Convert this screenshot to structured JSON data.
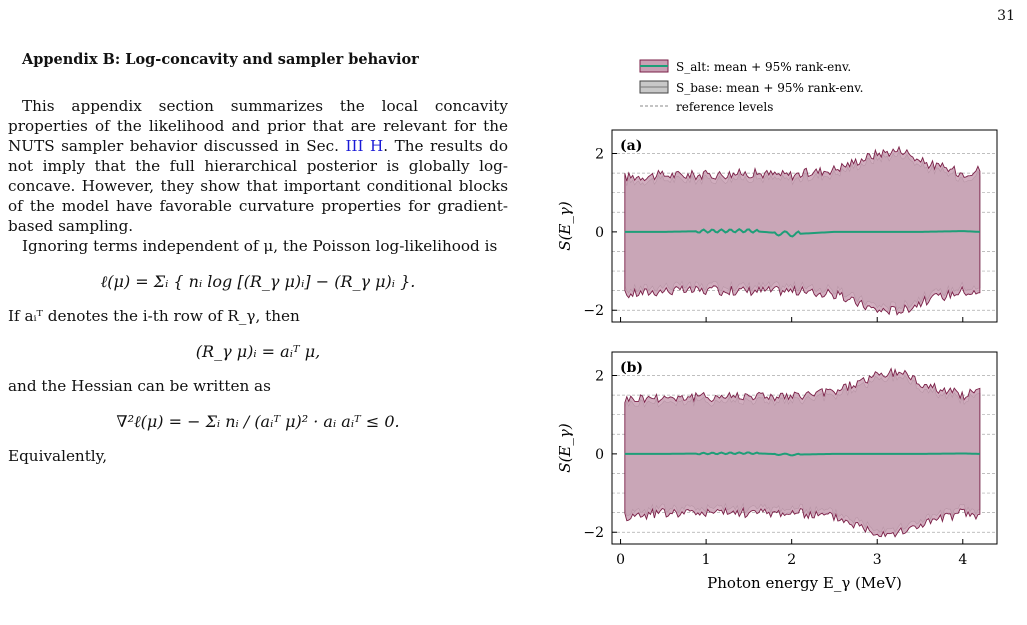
{
  "page_number": "31",
  "section_title": "Appendix B: Log-concavity and sampler behavior",
  "para1_a": "This appendix section summarizes the local concavity properties of the likelihood and prior that are relevant for the NUTS sampler behavior discussed in Sec. ",
  "para1_link": "III H",
  "para1_b": ". The results do not imply that the full hierarchical posterior is globally log-concave. However, they show that important conditional blocks of the model have favorable curvature properties for gradient-based sampling.",
  "para2": "Ignoring terms independent of μ, the Poisson log-likelihood is",
  "eq1": "ℓ(μ) = Σᵢ { nᵢ log [(R_γ μ)ᵢ] − (R_γ μ)ᵢ }.",
  "para3": "If aᵢᵀ denotes the i-th row of R_γ, then",
  "eq2": "(R_γ μ)ᵢ = aᵢᵀ μ,",
  "para4": "and the Hessian can be written as",
  "eq3": "∇²ℓ(μ) = − Σᵢ nᵢ / (aᵢᵀ μ)² · aᵢ aᵢᵀ ≤ 0.",
  "para5": "Equivalently,",
  "legend": [
    "S_alt: mean + 95% rank-env.",
    "S_base: mean + 95% rank-env.",
    "reference levels"
  ],
  "colors": {
    "alt_fill": "#c9a0b4",
    "alt_line": "#7a1f47",
    "base_fill": "#c8c8c8",
    "mean": "#1e9e78",
    "ref": "#aaaaaa",
    "link": "#1a1ad6"
  },
  "chart_data": [
    {
      "type": "area",
      "panel_label": "(a)",
      "ylabel": "S(E_γ)",
      "xlim": [
        -0.1,
        4.4
      ],
      "ylim": [
        -2.3,
        2.6
      ],
      "yticks": [
        -2,
        0,
        2
      ],
      "reference_levels": [
        -2,
        -1.5,
        -1,
        -0.5,
        0.5,
        1,
        1.5,
        2
      ],
      "x": [
        0.05,
        0.5,
        1.0,
        1.5,
        2.0,
        2.5,
        3.0,
        3.3,
        3.5,
        4.0,
        4.2
      ],
      "upper": [
        1.4,
        1.45,
        1.45,
        1.5,
        1.45,
        1.6,
        2.0,
        2.1,
        1.8,
        1.5,
        1.6
      ],
      "lower": [
        -1.6,
        -1.5,
        -1.5,
        -1.5,
        -1.5,
        -1.6,
        -2.0,
        -2.0,
        -1.8,
        -1.5,
        -1.6
      ],
      "mean": [
        0,
        0,
        0.02,
        0.03,
        -0.06,
        0,
        0,
        0,
        0,
        0.02,
        0
      ]
    },
    {
      "type": "area",
      "panel_label": "(b)",
      "ylabel": "S(E_γ)",
      "xlabel": "Photon energy E_γ (MeV)",
      "xlim": [
        -0.1,
        4.4
      ],
      "ylim": [
        -2.3,
        2.6
      ],
      "xticks": [
        0,
        1,
        2,
        3,
        4
      ],
      "yticks": [
        -2,
        0,
        2
      ],
      "reference_levels": [
        -2,
        -1.5,
        -1,
        -0.5,
        0.5,
        1,
        1.5,
        2
      ],
      "x": [
        0.05,
        0.5,
        1.0,
        1.5,
        2.0,
        2.5,
        3.0,
        3.3,
        3.5,
        4.0,
        4.2
      ],
      "upper": [
        1.4,
        1.45,
        1.45,
        1.5,
        1.45,
        1.6,
        2.0,
        2.1,
        1.8,
        1.5,
        1.6
      ],
      "lower": [
        -1.6,
        -1.5,
        -1.5,
        -1.5,
        -1.5,
        -1.6,
        -2.0,
        -2.0,
        -1.8,
        -1.5,
        -1.6
      ],
      "mean": [
        0,
        0,
        0.01,
        0.02,
        -0.02,
        0,
        0,
        0,
        0,
        0.01,
        0
      ]
    }
  ]
}
